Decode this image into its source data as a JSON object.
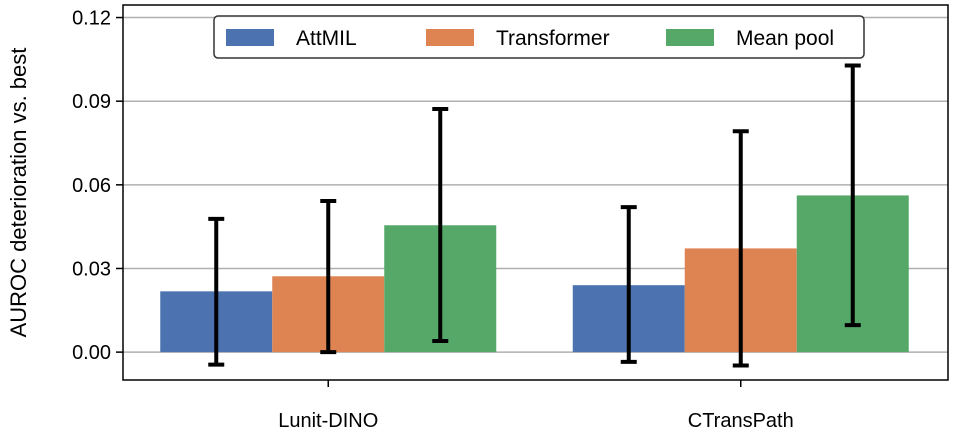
{
  "chart_data": {
    "type": "bar",
    "categories": [
      "Lunit-DINO",
      "CTransPath"
    ],
    "series": [
      {
        "name": "AttMIL",
        "color": "#4c72b0",
        "values": [
          0.0218,
          0.024
        ],
        "err_low": [
          -0.0045,
          -0.0035
        ],
        "err_high": [
          0.0478,
          0.052
        ]
      },
      {
        "name": "Transformer",
        "color": "#dd8452",
        "values": [
          0.0272,
          0.0372
        ],
        "err_low": [
          0.0,
          -0.0048
        ],
        "err_high": [
          0.0542,
          0.0792
        ]
      },
      {
        "name": "Mean pool",
        "color": "#55a868",
        "values": [
          0.0455,
          0.0562
        ],
        "err_low": [
          0.004,
          0.0097
        ],
        "err_high": [
          0.0872,
          0.1028
        ]
      }
    ],
    "ylabel": "AUROC deterioration vs. best",
    "xlabel": "",
    "ylim": [
      -0.01,
      0.1245
    ],
    "yticks": [
      "0.00",
      "0.03",
      "0.06",
      "0.09",
      "0.12"
    ],
    "grid": "horizontal",
    "legend_position": "top-center"
  }
}
